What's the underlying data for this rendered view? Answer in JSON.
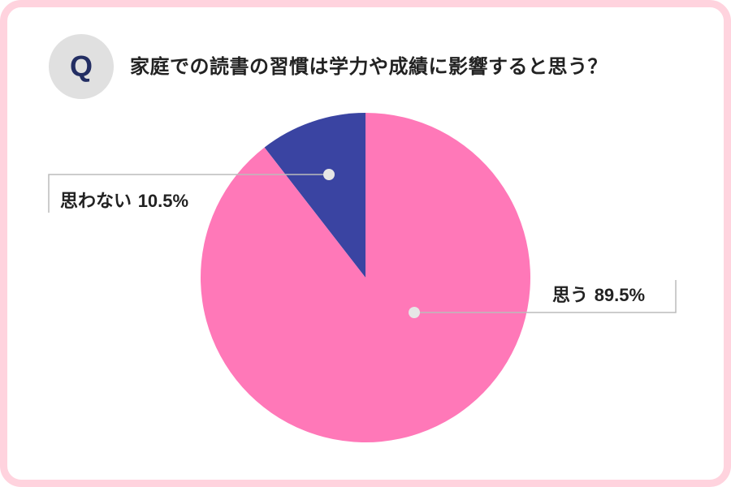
{
  "question": {
    "badge": "Q",
    "title": "家庭での読書の習慣は学力や成績に影響すると思う？"
  },
  "colors": {
    "frame": "#ffd3de",
    "badge_bg": "#e0e0e0",
    "badge_text": "#232e63",
    "yes": "#ff78b8",
    "no": "#3a44a2",
    "leader": "#bbbbbb",
    "dot": "#e6e6e6"
  },
  "chart_data": {
    "type": "pie",
    "title": "",
    "start": "top",
    "direction": "counterclockwise",
    "slices": [
      {
        "label": "思わない",
        "value": 10.5,
        "display": "10.5%",
        "color": "#3a44a2"
      },
      {
        "label": "思う",
        "value": 89.5,
        "display": "89.5%",
        "color": "#ff78b8"
      }
    ]
  }
}
